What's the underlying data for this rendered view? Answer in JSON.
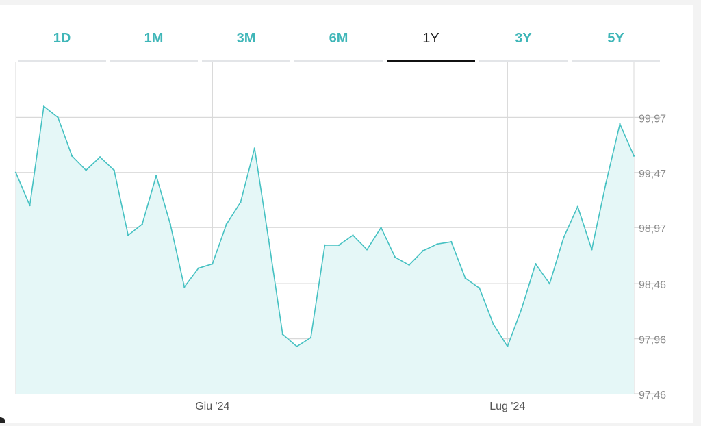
{
  "range_tabs": {
    "items": [
      {
        "label": "1D"
      },
      {
        "label": "1M"
      },
      {
        "label": "3M"
      },
      {
        "label": "6M"
      },
      {
        "label": "1Y"
      },
      {
        "label": "3Y"
      },
      {
        "label": "5Y"
      }
    ],
    "active_index": 4
  },
  "colors": {
    "accent": "#3fb6b8",
    "line": "#45c1c2",
    "fill": "#e5f7f7",
    "grid": "#d9d9d9",
    "tick_text": "#8a8a8a",
    "active_tab": "#111111"
  },
  "chart_data": {
    "type": "area",
    "title": "",
    "xlabel": "",
    "ylabel": "",
    "ylim": [
      97.46,
      100.47
    ],
    "grid": true,
    "yticks": [
      "99,97",
      "99,47",
      "98,97",
      "98,46",
      "97,96",
      "97,46"
    ],
    "ytick_values": [
      99.97,
      99.47,
      98.97,
      98.46,
      97.96,
      97.46
    ],
    "xticks": [
      {
        "label": "Giu '24",
        "index": 14
      },
      {
        "label": "Lug '24",
        "index": 35
      }
    ],
    "series": [
      {
        "values": [
          99.47,
          99.17,
          100.07,
          99.97,
          99.62,
          99.49,
          99.61,
          99.49,
          98.9,
          99.0,
          99.44,
          99.0,
          98.43,
          98.6,
          98.64,
          99.0,
          99.2,
          99.69,
          98.86,
          98.0,
          97.89,
          97.97,
          98.81,
          98.81,
          98.9,
          98.77,
          98.97,
          98.7,
          98.63,
          98.76,
          98.82,
          98.84,
          98.51,
          98.42,
          98.09,
          97.89,
          98.23,
          98.64,
          98.46,
          98.88,
          99.16,
          98.77,
          99.37,
          99.91,
          99.62
        ]
      }
    ]
  }
}
